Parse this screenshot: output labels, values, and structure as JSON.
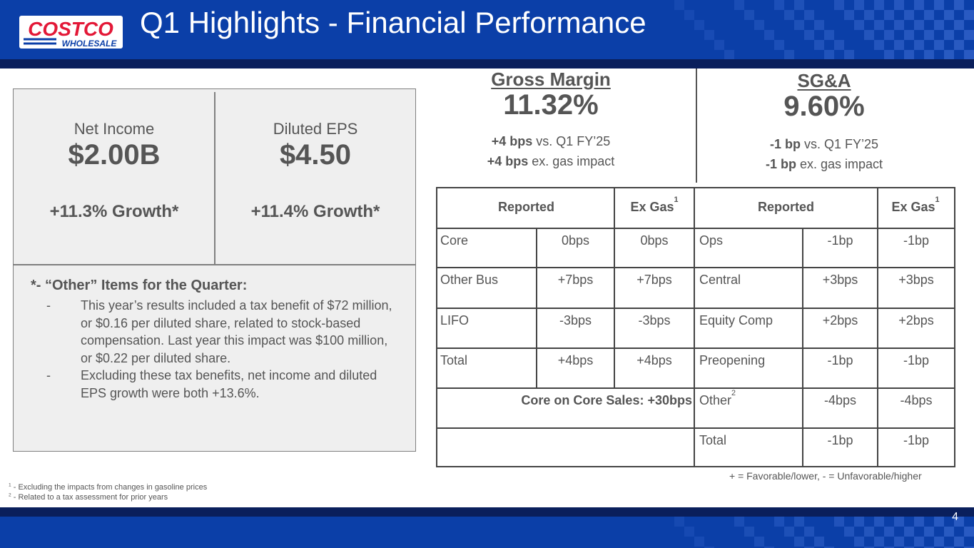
{
  "header": {
    "title": "Q1 Highlights - Financial Performance",
    "logo_top": "COSTCO",
    "logo_bottom": "WHOLESALE"
  },
  "metrics": {
    "net_income": {
      "label": "Net Income",
      "value": "$2.00B",
      "growth": "+11.3% Growth*"
    },
    "diluted_eps": {
      "label": "Diluted EPS",
      "value": "$4.50",
      "growth": "+11.4% Growth*"
    }
  },
  "notes": {
    "title": "*- “Other” Items for the Quarter:",
    "dash": "-",
    "items": [
      "This year’s results included a tax benefit of $72 million, or $0.16 per diluted share, related to stock-based compensation. Last year this impact was $100 million, or $0.22 per diluted share.",
      "Excluding these tax benefits, net income and diluted EPS growth were both +13.6%."
    ]
  },
  "gross_margin": {
    "title": "Gross Margin",
    "value": "11.32%",
    "line1_bold": "+4 bps",
    "line1_rest": " vs. Q1 FY’25",
    "line2_bold": "+4 bps",
    "line2_rest": " ex. gas impact"
  },
  "sga": {
    "title": "SG&A",
    "value": "9.60%",
    "line1_bold": "-1 bp",
    "line1_rest": " vs. Q1 FY’25",
    "line2_bold": "-1 bp",
    "line2_rest": " ex. gas impact"
  },
  "table": {
    "headers": {
      "gm_reported": "Reported",
      "gm_exgas": "Ex Gas",
      "gm_exgas_sup": "1",
      "sga_reported": "Reported",
      "sga_exgas": "Ex Gas",
      "sga_exgas_sup": "1"
    },
    "gm_rows": [
      {
        "label": "Core",
        "reported": "0bps",
        "exgas": "0bps"
      },
      {
        "label": "Other Bus",
        "reported": "+7bps",
        "exgas": "+7bps"
      },
      {
        "label": "LIFO",
        "reported": "-3bps",
        "exgas": "-3bps"
      },
      {
        "label": "Total",
        "reported": "+4bps",
        "exgas": "+4bps"
      }
    ],
    "gm_note": "Core on Core Sales: +30bps",
    "sga_rows": [
      {
        "label": "Ops",
        "sup": "",
        "reported": "-1bp",
        "exgas": "-1bp"
      },
      {
        "label": "Central",
        "sup": "",
        "reported": "+3bps",
        "exgas": "+3bps"
      },
      {
        "label": "Equity Comp",
        "sup": "",
        "reported": "+2bps",
        "exgas": "+2bps"
      },
      {
        "label": "Preopening",
        "sup": "",
        "reported": "-1bp",
        "exgas": "-1bp"
      },
      {
        "label": "Other",
        "sup": "2",
        "reported": "-4bps",
        "exgas": "-4bps"
      },
      {
        "label": "Total",
        "sup": "",
        "reported": "-1bp",
        "exgas": "-1bp"
      }
    ]
  },
  "legend": "+ = Favorable/lower, - = Unfavorable/higher",
  "footnotes": [
    {
      "num": "1",
      "text": "  - Excluding the impacts from changes in gasoline prices"
    },
    {
      "num": "2",
      "text": "  - Related to a tax assessment for prior years"
    }
  ],
  "page_number": "4"
}
